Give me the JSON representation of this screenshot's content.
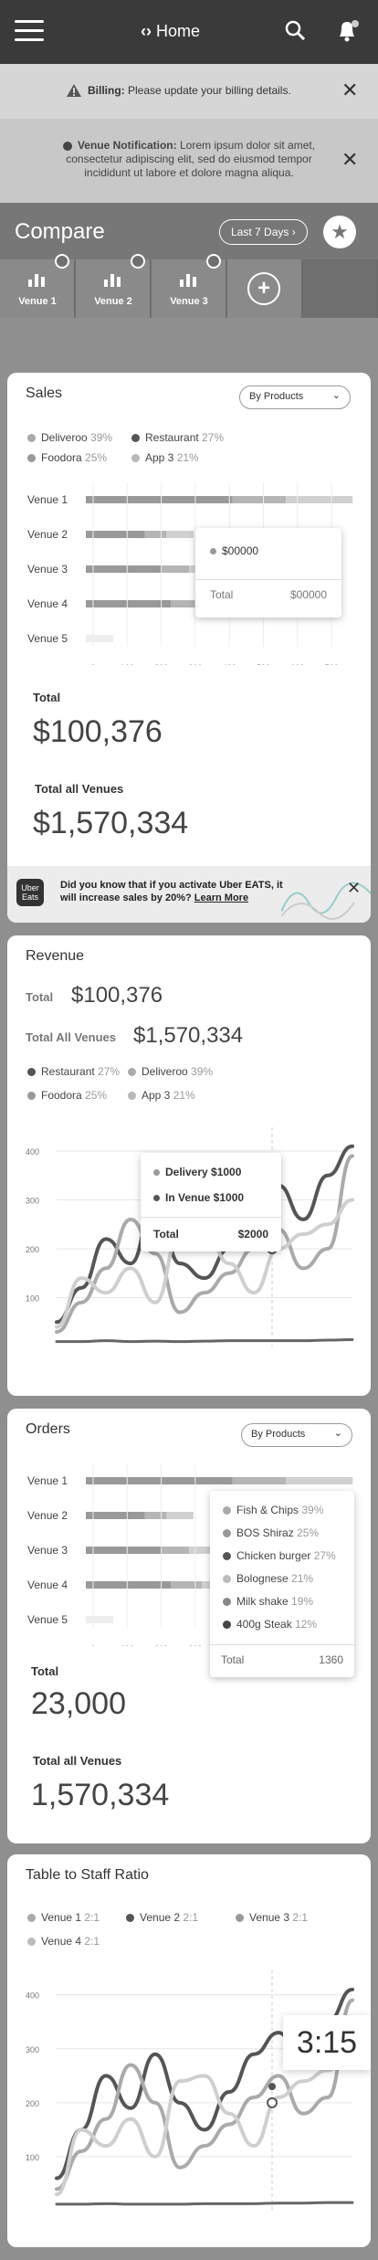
{
  "nav": {
    "title": "Home"
  },
  "billing": {
    "label": "Billing:",
    "text": "Please update your billing details."
  },
  "notification": {
    "label": "Venue Notification:",
    "text": "Lorem ipsum dolor sit amet, consectetur adipiscing elit, sed do eiusmod tempor incididunt ut labore et dolore magna aliqua."
  },
  "compare": {
    "title": "Compare",
    "range": "Last 7 Days"
  },
  "venues": [
    "Venue 1",
    "Venue 2",
    "Venue 3"
  ],
  "sales": {
    "title": "Sales",
    "dropdown": "By Products",
    "legend": [
      {
        "name": "Deliveroo",
        "pct": "39%",
        "color": "#aaaaaa"
      },
      {
        "name": "Restaurant",
        "pct": "27%",
        "color": "#555555"
      },
      {
        "name": "Foodora",
        "pct": "25%",
        "color": "#9a9a9a"
      },
      {
        "name": "App 3",
        "pct": "21%",
        "color": "#b8b8b8"
      }
    ],
    "tooltip": {
      "item": "$00000",
      "total_label": "Total",
      "total": "$00000"
    },
    "total_label": "Total",
    "total": "$100,376",
    "all_label": "Total all Venues",
    "all": "$1,570,334"
  },
  "promo": {
    "logo": "Uber Eats",
    "text": "Did you know that if you activate Uber EATS, it will increase sales by 20%?",
    "link": "Learn More"
  },
  "revenue": {
    "title": "Revenue",
    "total_label": "Total",
    "total": "$100,376",
    "all_label": "Total All Venues",
    "all": "$1,570,334",
    "legend": [
      {
        "name": "Restaurant",
        "pct": "27%",
        "color": "#555555"
      },
      {
        "name": "Deliveroo",
        "pct": "39%",
        "color": "#aaaaaa"
      },
      {
        "name": "Foodora",
        "pct": "25%",
        "color": "#9a9a9a"
      },
      {
        "name": "App 3",
        "pct": "21%",
        "color": "#b8b8b8"
      }
    ],
    "tooltip": {
      "a": "Delivery $1000",
      "b": "In Venue $1000",
      "total_label": "Total",
      "total": "$2000"
    }
  },
  "orders": {
    "title": "Orders",
    "dropdown": "By Products",
    "items": [
      {
        "name": "Fish & Chips",
        "pct": "39%",
        "color": "#aaaaaa"
      },
      {
        "name": "BOS Shiraz",
        "pct": "25%",
        "color": "#999999"
      },
      {
        "name": "Chicken burger",
        "pct": "27%",
        "color": "#555555"
      },
      {
        "name": "Bolognese",
        "pct": "21%",
        "color": "#bbbbbb"
      },
      {
        "name": "Milk shake",
        "pct": "19%",
        "color": "#888888"
      },
      {
        "name": "400g Steak",
        "pct": "12%",
        "color": "#444444"
      }
    ],
    "tooltip_total_label": "Total",
    "tooltip_total": "1360",
    "total_label": "Total",
    "total": "23,000",
    "all_label": "Total all Venues",
    "all": "1,570,334"
  },
  "staff": {
    "title": "Table to Staff Ratio",
    "time": "3:15",
    "legend": [
      {
        "name": "Venue 1",
        "ratio": "2:1",
        "color": "#aaaaaa"
      },
      {
        "name": "Venue 2",
        "ratio": "2:1",
        "color": "#555555"
      },
      {
        "name": "Venue 3",
        "ratio": "2:1",
        "color": "#999999"
      },
      {
        "name": "Venue 4",
        "ratio": "2:1",
        "color": "#bbbbbb"
      }
    ]
  },
  "chart_data": [
    {
      "type": "bar",
      "categories": [
        "Venue 1",
        "Venue 2",
        "Venue 3",
        "Venue 4",
        "Venue 5"
      ],
      "values": [
        620,
        250,
        320,
        360,
        160
      ],
      "xticks": [
        "0",
        "100",
        "200",
        "300",
        "400",
        "500",
        "600",
        "700"
      ],
      "xlim": [
        0,
        700
      ]
    },
    {
      "type": "line",
      "yticks": [
        "100",
        "200",
        "300",
        "400"
      ],
      "ylim": [
        0,
        430
      ],
      "series": [
        {
          "values": [
            50,
            120,
            220,
            170,
            300,
            170,
            140,
            200,
            280,
            330,
            260,
            350,
            410
          ],
          "color": "#555555"
        },
        {
          "values": [
            30,
            90,
            160,
            260,
            190,
            70,
            110,
            150,
            200,
            240,
            160,
            200,
            390
          ],
          "color": "#aaaaaa"
        },
        {
          "values": [
            40,
            140,
            110,
            160,
            90,
            230,
            240,
            170,
            110,
            200,
            230,
            250,
            300
          ],
          "color": "#cfcfcf"
        },
        {
          "values": [
            10,
            10,
            12,
            10,
            11,
            10,
            11,
            12,
            12,
            12,
            12,
            13,
            14
          ],
          "color": "#666666"
        }
      ]
    },
    {
      "type": "bar",
      "categories": [
        "Venue 1",
        "Venue 2",
        "Venue 3",
        "Venue 4",
        "Venue 5"
      ],
      "values": [
        620,
        250,
        320,
        360,
        160
      ],
      "xticks": [
        "0",
        "100",
        "200",
        "300"
      ]
    },
    {
      "type": "line",
      "yticks": [
        "100",
        "200",
        "300",
        "400"
      ],
      "ylim": [
        0,
        430
      ],
      "series": [
        {
          "values": [
            60,
            150,
            250,
            190,
            290,
            200,
            150,
            220,
            290,
            330,
            270,
            350,
            410
          ],
          "color": "#555555"
        },
        {
          "values": [
            40,
            110,
            170,
            270,
            200,
            80,
            120,
            160,
            210,
            250,
            180,
            210,
            390
          ],
          "color": "#aaaaaa"
        },
        {
          "values": [
            30,
            150,
            120,
            170,
            100,
            240,
            250,
            180,
            120,
            210,
            240,
            260,
            300
          ],
          "color": "#cfcfcf"
        },
        {
          "values": [
            12,
            12,
            13,
            12,
            12,
            12,
            13,
            13,
            13,
            14,
            14,
            15,
            15
          ],
          "color": "#666666"
        }
      ]
    }
  ]
}
